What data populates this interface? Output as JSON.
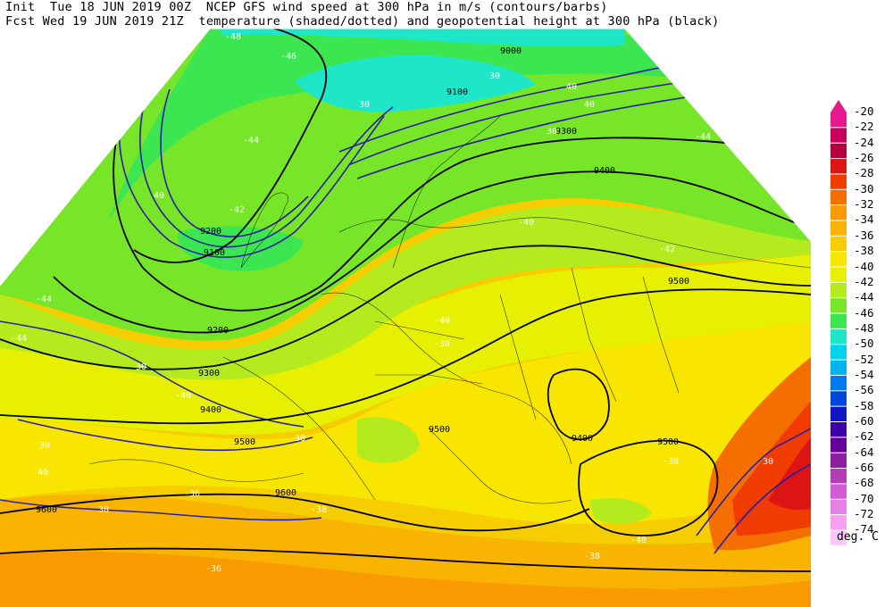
{
  "header": {
    "line1": "Init  Tue 18 JUN 2019 00Z  NCEP GFS wind speed at 300 hPa in m/s (contours/barbs)",
    "line2": "Fcst Wed 19 JUN 2019 21Z  temperature (shaded/dotted) and geopotential height at 300 hPa (black)"
  },
  "colorbar": {
    "units": "deg. C",
    "entries": [
      {
        "label": "-20",
        "color": "#e8198f"
      },
      {
        "label": "-22",
        "color": "#c8005a"
      },
      {
        "label": "-24",
        "color": "#b4003c"
      },
      {
        "label": "-26",
        "color": "#dc1414"
      },
      {
        "label": "-28",
        "color": "#f03c00"
      },
      {
        "label": "-30",
        "color": "#f56e00"
      },
      {
        "label": "-32",
        "color": "#f89a00"
      },
      {
        "label": "-34",
        "color": "#f8b400"
      },
      {
        "label": "-36",
        "color": "#f5cd00"
      },
      {
        "label": "-38",
        "color": "#f8e600"
      },
      {
        "label": "-40",
        "color": "#e6f000"
      },
      {
        "label": "-42",
        "color": "#b4eb1e"
      },
      {
        "label": "-44",
        "color": "#78e628"
      },
      {
        "label": "-46",
        "color": "#3ce650"
      },
      {
        "label": "-48",
        "color": "#1ee6c8"
      },
      {
        "label": "-50",
        "color": "#00d2f0"
      },
      {
        "label": "-52",
        "color": "#00b4f0"
      },
      {
        "label": "-54",
        "color": "#0078f0"
      },
      {
        "label": "-56",
        "color": "#0046dc"
      },
      {
        "label": "-58",
        "color": "#1414c8"
      },
      {
        "label": "-60",
        "color": "#3c00aa"
      },
      {
        "label": "-62",
        "color": "#64009b"
      },
      {
        "label": "-64",
        "color": "#8c1ea0"
      },
      {
        "label": "-66",
        "color": "#b43cb4"
      },
      {
        "label": "-68",
        "color": "#d25ad2"
      },
      {
        "label": "-70",
        "color": "#e682e6"
      },
      {
        "label": "-72",
        "color": "#f5a0f5"
      },
      {
        "label": "-74",
        "color": "#fac8fa"
      }
    ]
  },
  "map_labels": {
    "heights": [
      "9200",
      "9300",
      "9400",
      "9500",
      "9600",
      "9000",
      "9100",
      "9300",
      "9400",
      "9500",
      "9500",
      "9500",
      "9600",
      "9400",
      "9200",
      "9100"
    ],
    "temps": [
      "-46",
      "-44",
      "-42",
      "-48",
      "-40",
      "-38",
      "-36",
      "-38",
      "-40",
      "-42",
      "-44",
      "-38",
      "-40",
      "-36",
      "-38",
      "-40",
      "-44",
      "-44"
    ],
    "winds": [
      "30",
      "40",
      "30",
      "30",
      "40",
      "30",
      "30",
      "40",
      "30",
      "30",
      "30",
      "40"
    ]
  }
}
